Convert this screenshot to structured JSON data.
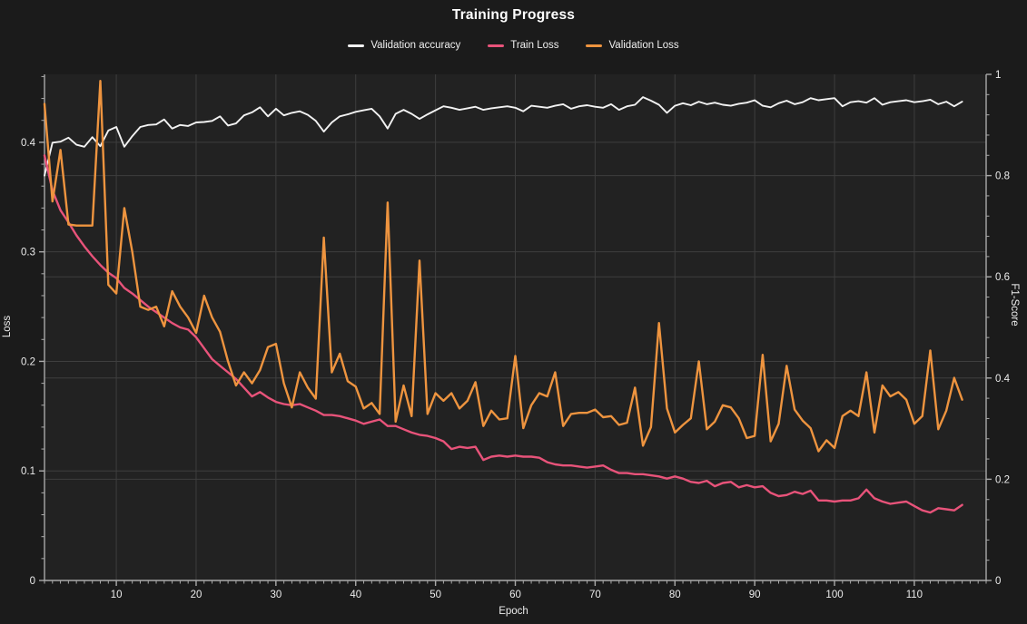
{
  "chart": {
    "background": "#1b1b1b",
    "plot_background": "#222222",
    "grid_color": "#3e3e3e",
    "spine_color": "#a9a9a9",
    "text_color": "#ececec"
  },
  "chart_data": {
    "type": "line",
    "title": "Training Progress",
    "xlabel": "Epoch",
    "ylabel_left": "Loss",
    "ylabel_right": "F1-Score",
    "legend_position": "top",
    "grid": true,
    "x_range": [
      1,
      119
    ],
    "y_left_range": [
      0,
      0.462
    ],
    "y_right_range": [
      0,
      1
    ],
    "x_ticks_major": [
      10,
      20,
      30,
      40,
      50,
      60,
      70,
      80,
      90,
      100,
      110
    ],
    "x_tick_labels": [
      "10",
      "20",
      "30",
      "40",
      "50",
      "60",
      "70",
      "80",
      "90",
      "100",
      "110"
    ],
    "x_minor_step": 1,
    "y_left_ticks_major": [
      0,
      0.1,
      0.2,
      0.3,
      0.4
    ],
    "y_left_tick_labels": [
      "0",
      "0.1",
      "0.2",
      "0.3",
      "0.4"
    ],
    "y_left_minor_step": 0.02,
    "y_right_ticks_major": [
      0,
      0.2,
      0.4,
      0.6,
      0.8,
      1
    ],
    "y_right_tick_labels": [
      "0",
      "0.2",
      "0.4",
      "0.6",
      "0.8",
      "1"
    ],
    "y_right_minor_step": 0.04,
    "x": [
      1,
      2,
      3,
      4,
      5,
      6,
      7,
      8,
      9,
      10,
      11,
      12,
      13,
      14,
      15,
      16,
      17,
      18,
      19,
      20,
      21,
      22,
      23,
      24,
      25,
      26,
      27,
      28,
      29,
      30,
      31,
      32,
      33,
      34,
      35,
      36,
      37,
      38,
      39,
      40,
      41,
      42,
      43,
      44,
      45,
      46,
      47,
      48,
      49,
      50,
      51,
      52,
      53,
      54,
      55,
      56,
      57,
      58,
      59,
      60,
      61,
      62,
      63,
      64,
      65,
      66,
      67,
      68,
      69,
      70,
      71,
      72,
      73,
      74,
      75,
      76,
      77,
      78,
      79,
      80,
      81,
      82,
      83,
      84,
      85,
      86,
      87,
      88,
      89,
      90,
      91,
      92,
      93,
      94,
      95,
      96,
      97,
      98,
      99,
      100,
      101,
      102,
      103,
      104,
      105,
      106,
      107,
      108,
      109,
      110,
      111,
      112,
      113,
      114,
      115,
      116
    ],
    "series": [
      {
        "name": "Validation accuracy",
        "color": "#f2f2f2",
        "axis": "right",
        "stroke_width": 1.9,
        "values": [
          0.8,
          0.865,
          0.867,
          0.875,
          0.861,
          0.857,
          0.876,
          0.858,
          0.889,
          0.896,
          0.857,
          0.878,
          0.896,
          0.9,
          0.901,
          0.911,
          0.893,
          0.9,
          0.898,
          0.905,
          0.906,
          0.908,
          0.917,
          0.899,
          0.903,
          0.919,
          0.925,
          0.935,
          0.917,
          0.932,
          0.919,
          0.924,
          0.927,
          0.92,
          0.908,
          0.887,
          0.905,
          0.917,
          0.921,
          0.926,
          0.929,
          0.932,
          0.917,
          0.893,
          0.922,
          0.93,
          0.922,
          0.912,
          0.921,
          0.929,
          0.937,
          0.934,
          0.93,
          0.933,
          0.936,
          0.93,
          0.933,
          0.935,
          0.937,
          0.934,
          0.927,
          0.938,
          0.936,
          0.934,
          0.938,
          0.941,
          0.932,
          0.937,
          0.939,
          0.936,
          0.934,
          0.941,
          0.93,
          0.937,
          0.94,
          0.955,
          0.948,
          0.94,
          0.924,
          0.938,
          0.943,
          0.939,
          0.946,
          0.941,
          0.944,
          0.94,
          0.938,
          0.942,
          0.944,
          0.949,
          0.938,
          0.935,
          0.943,
          0.948,
          0.941,
          0.945,
          0.953,
          0.949,
          0.951,
          0.953,
          0.937,
          0.945,
          0.947,
          0.944,
          0.953,
          0.94,
          0.945,
          0.947,
          0.949,
          0.945,
          0.947,
          0.95,
          0.941,
          0.946,
          0.937,
          0.946
        ]
      },
      {
        "name": "Train Loss",
        "color": "#e8537a",
        "axis": "left",
        "stroke_width": 2.4,
        "values": [
          0.388,
          0.356,
          0.338,
          0.327,
          0.315,
          0.305,
          0.296,
          0.288,
          0.281,
          0.276,
          0.267,
          0.262,
          0.256,
          0.25,
          0.245,
          0.24,
          0.235,
          0.231,
          0.229,
          0.222,
          0.212,
          0.202,
          0.196,
          0.19,
          0.184,
          0.176,
          0.168,
          0.172,
          0.167,
          0.163,
          0.161,
          0.16,
          0.161,
          0.158,
          0.155,
          0.151,
          0.151,
          0.15,
          0.148,
          0.146,
          0.143,
          0.145,
          0.147,
          0.141,
          0.141,
          0.138,
          0.135,
          0.133,
          0.132,
          0.13,
          0.127,
          0.12,
          0.122,
          0.121,
          0.122,
          0.11,
          0.113,
          0.114,
          0.113,
          0.114,
          0.113,
          0.113,
          0.112,
          0.108,
          0.106,
          0.105,
          0.105,
          0.104,
          0.103,
          0.104,
          0.105,
          0.101,
          0.098,
          0.098,
          0.097,
          0.097,
          0.096,
          0.095,
          0.093,
          0.095,
          0.093,
          0.09,
          0.089,
          0.091,
          0.086,
          0.089,
          0.09,
          0.085,
          0.087,
          0.085,
          0.086,
          0.08,
          0.077,
          0.078,
          0.081,
          0.079,
          0.082,
          0.073,
          0.073,
          0.072,
          0.073,
          0.073,
          0.075,
          0.083,
          0.075,
          0.072,
          0.07,
          0.071,
          0.072,
          0.068,
          0.064,
          0.062,
          0.066,
          0.065,
          0.064,
          0.069
        ]
      },
      {
        "name": "Validation Loss",
        "color": "#ee943f",
        "axis": "left",
        "stroke_width": 2.4,
        "values": [
          0.435,
          0.346,
          0.393,
          0.325,
          0.324,
          0.324,
          0.324,
          0.456,
          0.27,
          0.262,
          0.34,
          0.3,
          0.25,
          0.247,
          0.25,
          0.232,
          0.264,
          0.25,
          0.24,
          0.226,
          0.26,
          0.24,
          0.227,
          0.2,
          0.178,
          0.19,
          0.18,
          0.192,
          0.213,
          0.216,
          0.18,
          0.158,
          0.19,
          0.176,
          0.166,
          0.313,
          0.19,
          0.207,
          0.182,
          0.177,
          0.157,
          0.162,
          0.152,
          0.345,
          0.145,
          0.178,
          0.15,
          0.292,
          0.152,
          0.171,
          0.164,
          0.171,
          0.157,
          0.164,
          0.181,
          0.141,
          0.155,
          0.147,
          0.148,
          0.205,
          0.139,
          0.16,
          0.171,
          0.168,
          0.19,
          0.141,
          0.152,
          0.153,
          0.153,
          0.156,
          0.149,
          0.15,
          0.142,
          0.144,
          0.176,
          0.123,
          0.14,
          0.235,
          0.157,
          0.135,
          0.142,
          0.148,
          0.2,
          0.138,
          0.145,
          0.16,
          0.158,
          0.148,
          0.13,
          0.132,
          0.206,
          0.127,
          0.143,
          0.196,
          0.156,
          0.146,
          0.139,
          0.118,
          0.128,
          0.121,
          0.15,
          0.155,
          0.15,
          0.19,
          0.135,
          0.178,
          0.168,
          0.172,
          0.165,
          0.143,
          0.15,
          0.21,
          0.138,
          0.155,
          0.185,
          0.165
        ]
      }
    ]
  }
}
